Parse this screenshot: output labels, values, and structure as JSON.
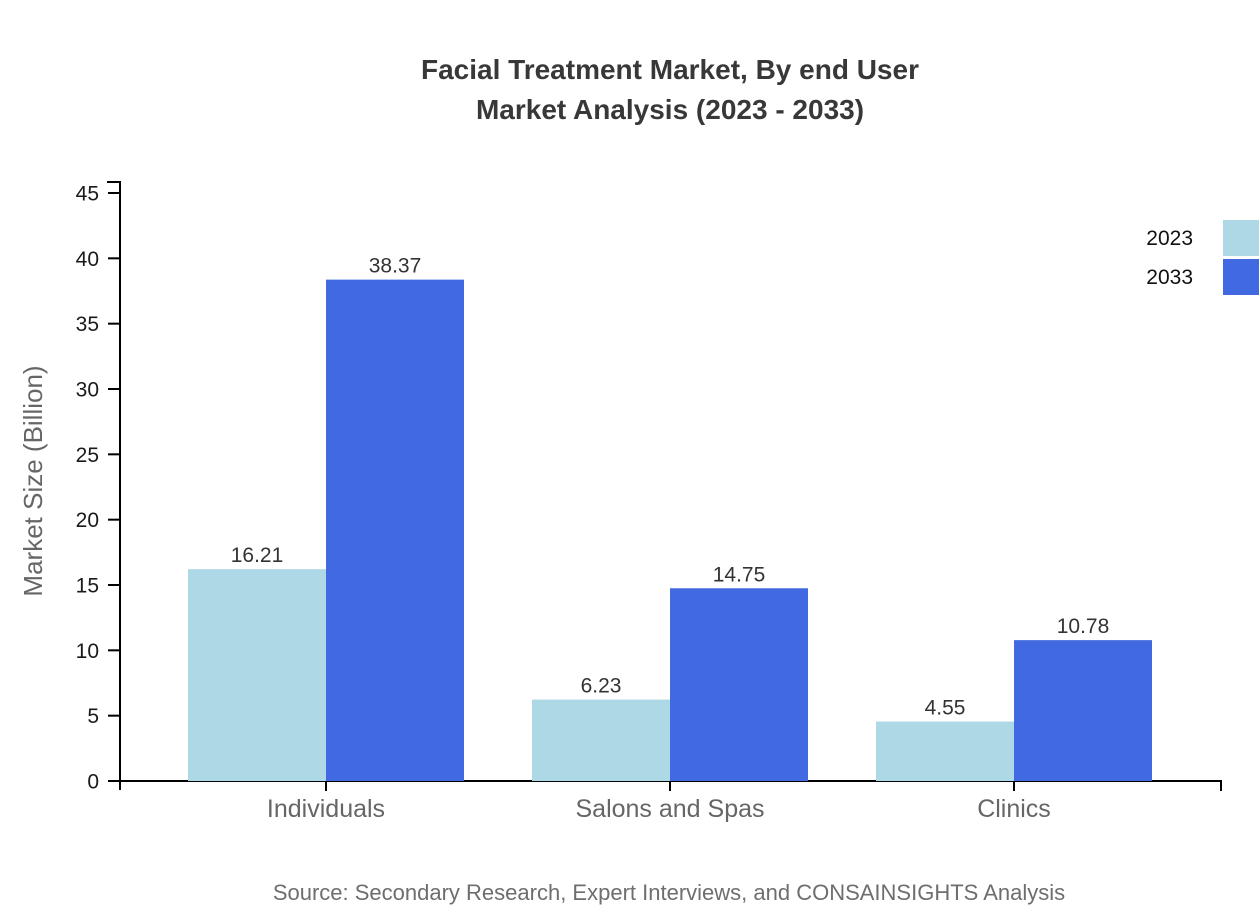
{
  "title": {
    "line1": "Facial Treatment Market, By end User",
    "line2": "Market Analysis (2023 - 2033)"
  },
  "source_note": "Source: Secondary Research, Expert Interviews, and CONSAINSIGHTS Analysis",
  "chart_data": {
    "type": "bar",
    "categories": [
      "Individuals",
      "Salons and Spas",
      "Clinics"
    ],
    "series": [
      {
        "name": "2023",
        "color": "#ADD8E6",
        "values": [
          16.21,
          6.23,
          4.55
        ]
      },
      {
        "name": "2033",
        "color": "#4169E1",
        "values": [
          38.37,
          14.75,
          10.78
        ]
      }
    ],
    "title": "Facial Treatment Market, By end User Market Analysis (2023 - 2033)",
    "xlabel": "",
    "ylabel": "Market Size (Billion)",
    "ylim": [
      0,
      45
    ],
    "ytick_step": 5,
    "grid": false,
    "legend_position": "top-right",
    "value_labels": true
  },
  "colors": {
    "series_2023": "#ADD8E6",
    "series_2033": "#4169E1",
    "axis": "#000000",
    "title_text": "#383838",
    "category_text": "#666666",
    "value_text": "#333333",
    "source_text": "#6e6e6e"
  }
}
